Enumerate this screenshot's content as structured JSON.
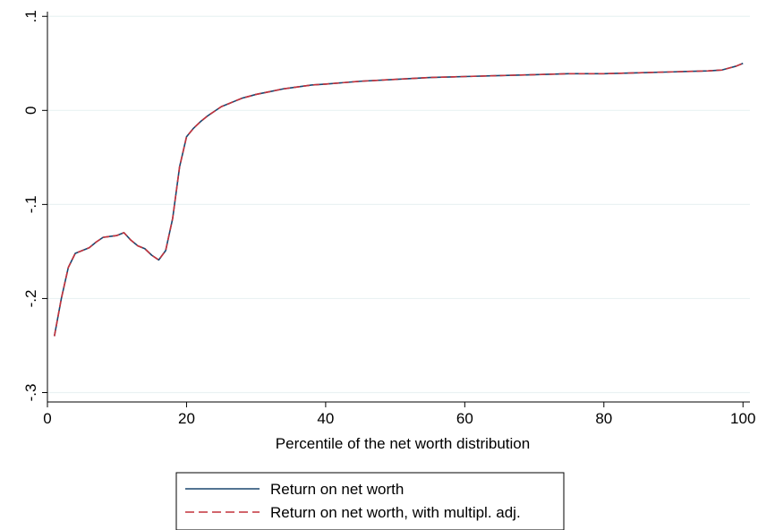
{
  "chart_data": {
    "type": "line",
    "xlabel": "Percentile of the net worth distribution",
    "ylabel": "",
    "xlim": [
      0,
      101
    ],
    "ylim": [
      -0.31,
      0.105
    ],
    "x_ticks": [
      {
        "value": 0,
        "label": "0"
      },
      {
        "value": 20,
        "label": "20"
      },
      {
        "value": 40,
        "label": "40"
      },
      {
        "value": 60,
        "label": "60"
      },
      {
        "value": 80,
        "label": "80"
      },
      {
        "value": 100,
        "label": "100"
      }
    ],
    "y_ticks": [
      {
        "value": -0.3,
        "label": "-.3"
      },
      {
        "value": -0.2,
        "label": "-.2"
      },
      {
        "value": -0.1,
        "label": "-.1"
      },
      {
        "value": 0,
        "label": "0"
      },
      {
        "value": 0.1,
        "label": ".1"
      }
    ],
    "grid": true,
    "legend_position": "bottom",
    "x": [
      1,
      2,
      3,
      4,
      5,
      6,
      7,
      8,
      9,
      10,
      11,
      12,
      13,
      14,
      15,
      16,
      17,
      18,
      19,
      20,
      21,
      22,
      23,
      24,
      25,
      26,
      27,
      28,
      29,
      30,
      32,
      34,
      36,
      38,
      40,
      45,
      50,
      55,
      60,
      65,
      70,
      75,
      80,
      85,
      90,
      95,
      97,
      98,
      99,
      100
    ],
    "series": [
      {
        "name": "Return on net worth",
        "color": "#1a476f",
        "dash": "solid",
        "values": [
          -0.24,
          -0.2,
          -0.167,
          -0.152,
          -0.149,
          -0.146,
          -0.14,
          -0.135,
          -0.134,
          -0.133,
          -0.13,
          -0.138,
          -0.144,
          -0.147,
          -0.154,
          -0.159,
          -0.149,
          -0.115,
          -0.06,
          -0.028,
          -0.019,
          -0.012,
          -0.006,
          -0.001,
          0.004,
          0.007,
          0.01,
          0.013,
          0.015,
          0.017,
          0.02,
          0.023,
          0.025,
          0.027,
          0.028,
          0.031,
          0.033,
          0.035,
          0.036,
          0.037,
          0.038,
          0.039,
          0.039,
          0.04,
          0.041,
          0.042,
          0.043,
          0.045,
          0.047,
          0.05
        ]
      },
      {
        "name": "Return on net worth, with multipl. adj.",
        "color": "#c4323c",
        "dash": "dashed",
        "values": [
          -0.24,
          -0.2,
          -0.167,
          -0.152,
          -0.149,
          -0.146,
          -0.14,
          -0.135,
          -0.134,
          -0.133,
          -0.13,
          -0.138,
          -0.144,
          -0.147,
          -0.154,
          -0.159,
          -0.149,
          -0.115,
          -0.06,
          -0.028,
          -0.019,
          -0.012,
          -0.006,
          -0.001,
          0.004,
          0.007,
          0.01,
          0.013,
          0.015,
          0.017,
          0.02,
          0.023,
          0.025,
          0.027,
          0.028,
          0.031,
          0.033,
          0.035,
          0.036,
          0.037,
          0.038,
          0.039,
          0.039,
          0.04,
          0.041,
          0.042,
          0.043,
          0.045,
          0.047,
          0.05
        ]
      }
    ]
  }
}
